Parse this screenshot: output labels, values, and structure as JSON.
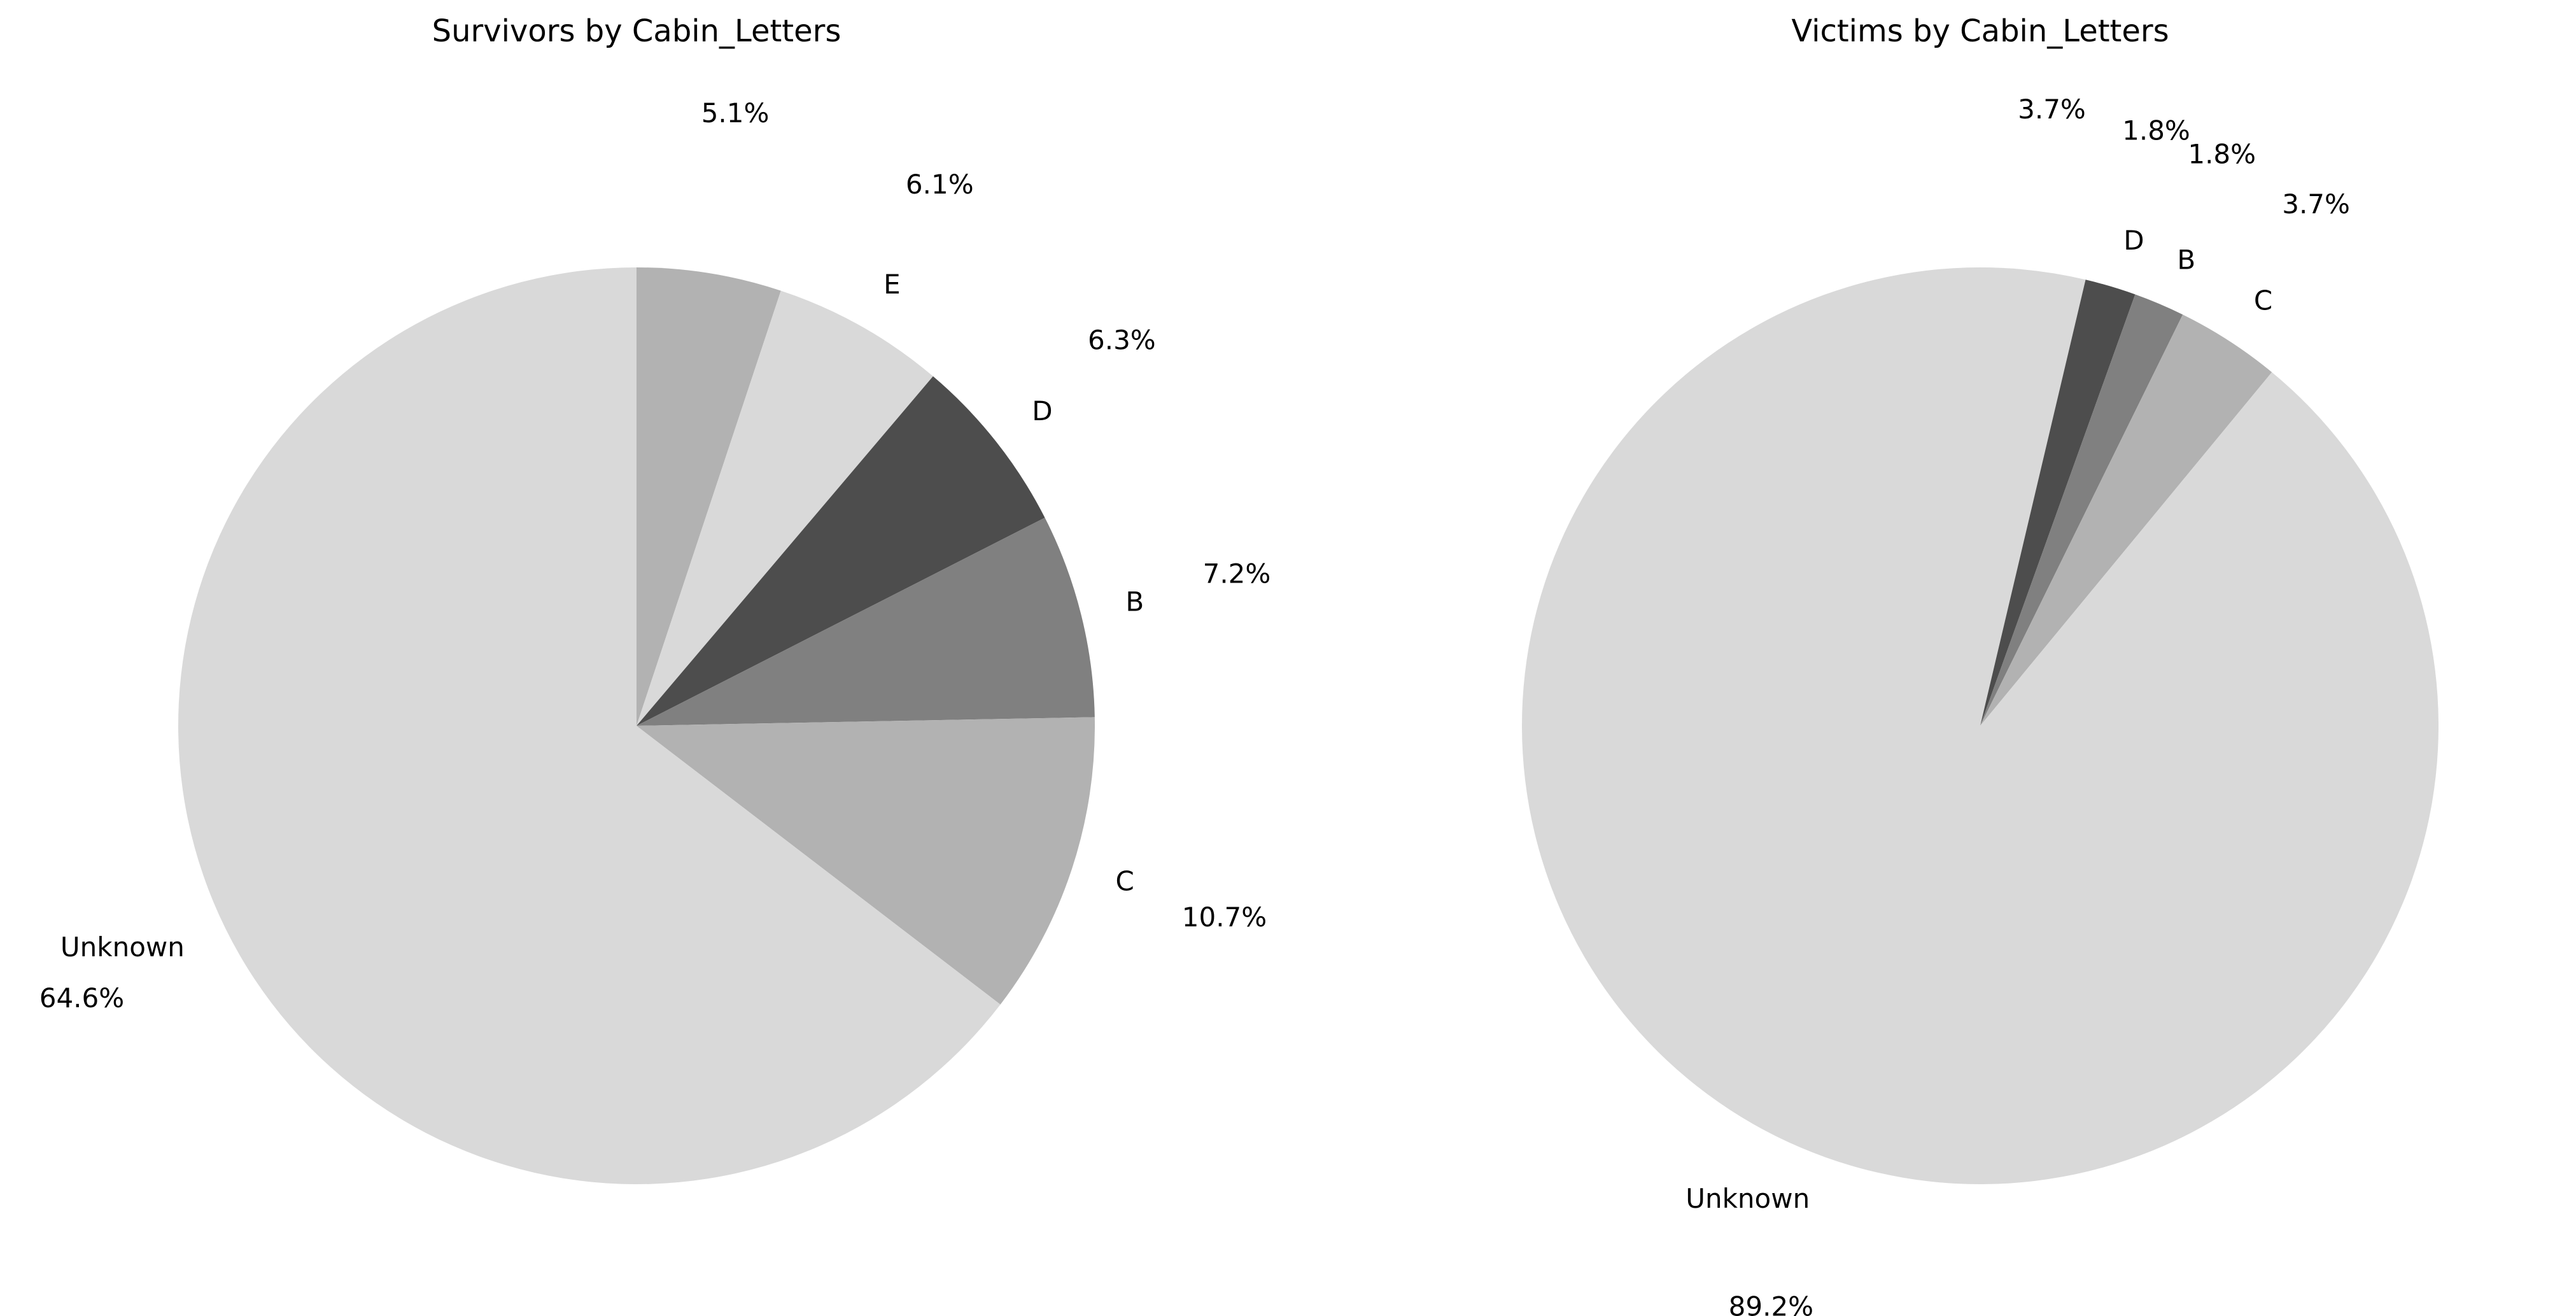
{
  "chart_data": [
    {
      "type": "pie",
      "title": "Survivors by Cabin_Letters",
      "categories": [
        "",
        "E",
        "D",
        "B",
        "C",
        "Unknown"
      ],
      "values": [
        5.1,
        6.1,
        6.3,
        7.2,
        10.7,
        64.6
      ],
      "percent_labels": [
        "5.1%",
        "6.1%",
        "6.3%",
        "7.2%",
        "10.7%",
        "64.6%"
      ],
      "colors": [
        "#b2b2b2",
        "#d9d9d9",
        "#4d4d4d",
        "#808080",
        "#b2b2b2",
        "#d9d9d9"
      ],
      "start_angle_deg": 90,
      "direction": "clockwise"
    },
    {
      "type": "pie",
      "title": "Victims by Cabin_Letters",
      "categories": [
        "",
        "D",
        "B",
        "C",
        "Unknown"
      ],
      "values": [
        3.7,
        1.8,
        1.8,
        3.7,
        89.2
      ],
      "percent_labels": [
        "3.7%",
        "1.8%",
        "1.8%",
        "3.7%",
        "89.2%"
      ],
      "colors": [
        "#d9d9d9",
        "#4d4d4d",
        "#808080",
        "#b2b2b2",
        "#d9d9d9"
      ],
      "start_angle_deg": 90,
      "direction": "clockwise"
    }
  ]
}
